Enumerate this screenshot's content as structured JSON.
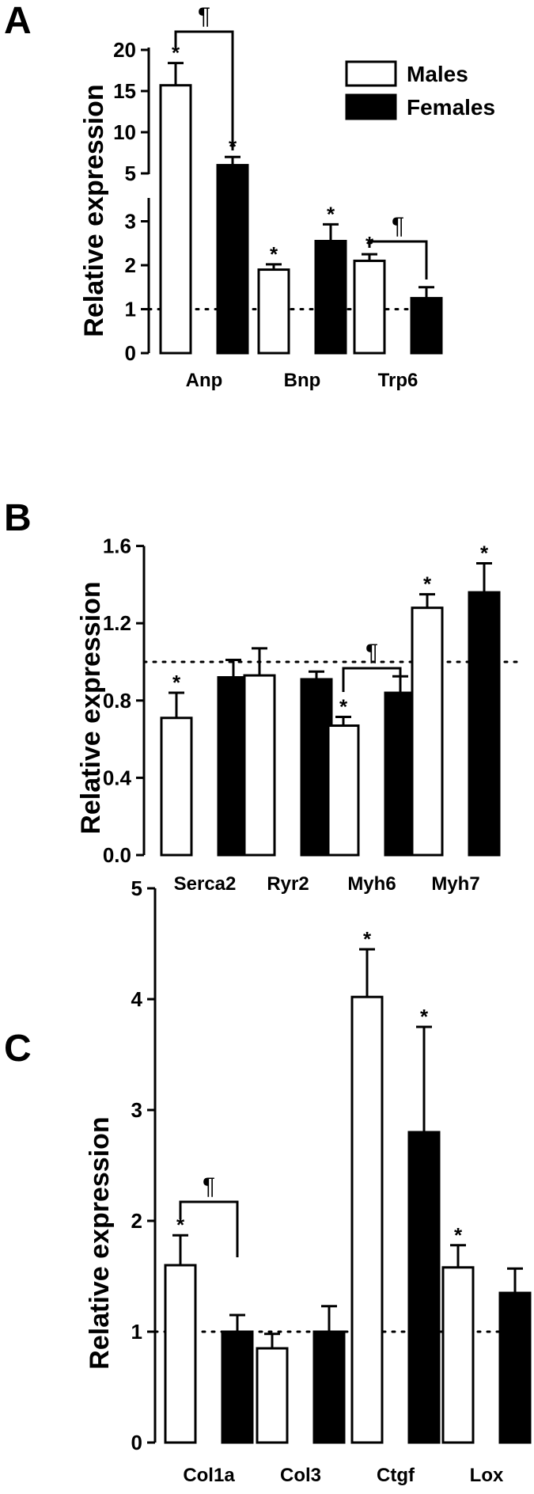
{
  "legend": {
    "males": "Males",
    "females": "Females"
  },
  "chart_data": [
    {
      "panel_label": "A",
      "type": "bar",
      "ylabel": "Relative expression",
      "y_axis": "broken",
      "ylim_lower": [
        0,
        3.5
      ],
      "ylim_upper": [
        5,
        20
      ],
      "yticks_lower": [
        "0",
        "1",
        "2",
        "3"
      ],
      "yticks_upper": [
        "5",
        "10",
        "15",
        "20"
      ],
      "reference_line": 1,
      "categories": [
        "Anp",
        "Bnp",
        "Trp6"
      ],
      "series": [
        {
          "name": "Males",
          "values": [
            15.7,
            1.9,
            2.1
          ],
          "errors": [
            2.7,
            0.12,
            0.15
          ],
          "significant": [
            true,
            true,
            true
          ]
        },
        {
          "name": "Females",
          "values": [
            6.0,
            2.55,
            1.25
          ],
          "errors": [
            1.0,
            0.38,
            0.25
          ],
          "significant": [
            true,
            true,
            false
          ]
        }
      ],
      "sex_difference": [
        {
          "category": "Anp",
          "symbol": "¶"
        },
        {
          "category": "Trp6",
          "symbol": "¶"
        }
      ],
      "significance_symbol": "*"
    },
    {
      "panel_label": "B",
      "type": "bar",
      "ylabel": "Relative expression",
      "ylim": [
        0,
        1.6
      ],
      "yticks": [
        "0.0",
        "0.4",
        "0.8",
        "1.2",
        "1.6"
      ],
      "reference_line": 1,
      "categories": [
        "Serca2",
        "Ryr2",
        "Myh6",
        "Myh7"
      ],
      "series": [
        {
          "name": "Males",
          "values": [
            0.71,
            0.93,
            0.67,
            1.28
          ],
          "errors": [
            0.13,
            0.14,
            0.045,
            0.07
          ],
          "significant": [
            true,
            false,
            true,
            true
          ]
        },
        {
          "name": "Females",
          "values": [
            0.92,
            0.91,
            0.84,
            1.36
          ],
          "errors": [
            0.09,
            0.04,
            0.085,
            0.15
          ],
          "significant": [
            false,
            false,
            false,
            true
          ]
        }
      ],
      "sex_difference": [
        {
          "category": "Myh6",
          "symbol": "¶"
        }
      ],
      "significance_symbol": "*"
    },
    {
      "panel_label": "C",
      "type": "bar",
      "ylabel": "Relative expression",
      "ylim": [
        0,
        5
      ],
      "yticks": [
        "0",
        "1",
        "2",
        "3",
        "4",
        "5"
      ],
      "reference_line": 1,
      "categories": [
        "Col1a",
        "Col3",
        "Ctgf",
        "Lox"
      ],
      "series": [
        {
          "name": "Males",
          "values": [
            1.6,
            0.85,
            4.02,
            1.58
          ],
          "errors": [
            0.27,
            0.13,
            0.43,
            0.2
          ],
          "significant": [
            true,
            false,
            true,
            true
          ]
        },
        {
          "name": "Females",
          "values": [
            1.0,
            1.0,
            2.8,
            1.35
          ],
          "errors": [
            0.15,
            0.23,
            0.95,
            0.22
          ],
          "significant": [
            false,
            false,
            true,
            false
          ]
        }
      ],
      "sex_difference": [
        {
          "category": "Col1a",
          "symbol": "¶"
        }
      ],
      "significance_symbol": "*"
    }
  ]
}
